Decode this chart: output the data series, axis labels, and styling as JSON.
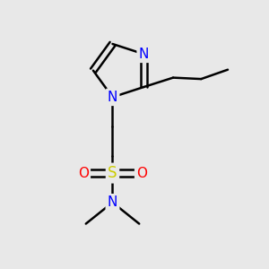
{
  "background_color": "#e8e8e8",
  "bond_color": "#000000",
  "bond_width": 1.8,
  "atom_colors": {
    "N": "#0000ff",
    "S": "#cccc00",
    "O": "#ff0000",
    "C": "#000000"
  },
  "font_size": 11,
  "figsize": [
    3.0,
    3.0
  ],
  "dpi": 100,
  "xlim": [
    0,
    10
  ],
  "ylim": [
    0,
    10
  ]
}
